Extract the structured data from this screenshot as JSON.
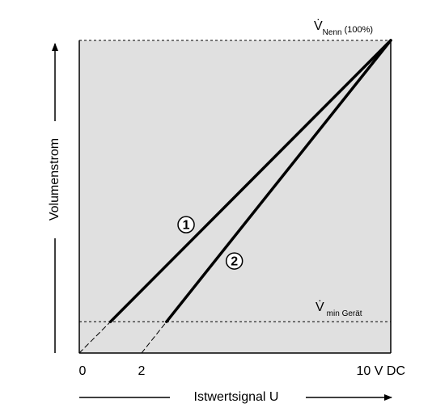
{
  "chart_data": {
    "type": "line",
    "x_label": "Istwertsignal U",
    "y_label": "Volumenstrom",
    "top_label": {
      "symbol": "V̇",
      "subscript": "Nenn",
      "suffix": "(100%)"
    },
    "reference_line": {
      "value": 10,
      "symbol": "V̇",
      "subscript": "min Gerät"
    },
    "xlim": [
      0,
      10
    ],
    "ylim": [
      0,
      100
    ],
    "xticks": [
      0,
      2,
      {
        "value": 10,
        "label": "10 V DC"
      }
    ],
    "background": "#e0e0e0",
    "series": [
      {
        "name": "1",
        "color": "#000000",
        "x": [
          0,
          1,
          10
        ],
        "values": [
          0,
          10,
          100
        ]
      },
      {
        "name": "2",
        "color": "#000000",
        "x": [
          2,
          2.8,
          10
        ],
        "values": [
          0,
          10,
          100
        ]
      }
    ]
  }
}
